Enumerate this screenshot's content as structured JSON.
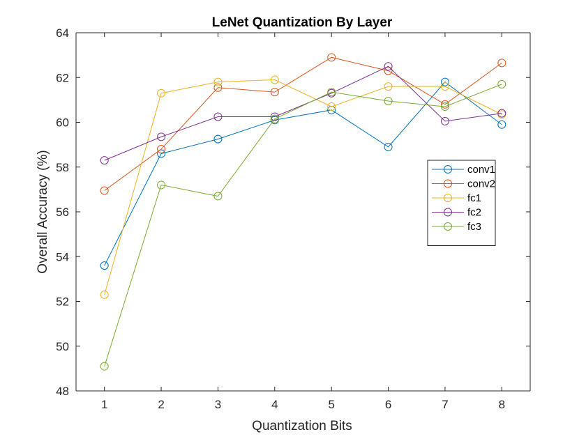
{
  "chart_data": {
    "type": "line",
    "title": "LeNet Quantization By Layer",
    "xlabel": "Quantization Bits",
    "ylabel": "Overall Accuracy (%)",
    "x": [
      1,
      2,
      3,
      4,
      5,
      6,
      7,
      8
    ],
    "xlim": [
      0.5,
      8.5
    ],
    "ylim": [
      48,
      64
    ],
    "xticks": [
      "1",
      "2",
      "3",
      "4",
      "5",
      "6",
      "7",
      "8"
    ],
    "yticks": [
      "48",
      "50",
      "52",
      "54",
      "56",
      "58",
      "60",
      "62",
      "64"
    ],
    "legend_location": "right",
    "marker": "circle",
    "grid": false,
    "series": [
      {
        "name": "conv1",
        "color": "#0072BD",
        "values": [
          53.6,
          58.6,
          59.25,
          60.1,
          60.55,
          58.9,
          61.8,
          59.9
        ]
      },
      {
        "name": "conv2",
        "color": "#D95319",
        "values": [
          56.95,
          58.8,
          61.55,
          61.35,
          62.9,
          62.3,
          60.8,
          62.65
        ]
      },
      {
        "name": "fc1",
        "color": "#EDB120",
        "values": [
          52.3,
          61.3,
          61.8,
          61.9,
          60.7,
          61.6,
          61.6,
          60.35
        ]
      },
      {
        "name": "fc2",
        "color": "#7E2F8E",
        "values": [
          58.3,
          59.35,
          60.25,
          60.25,
          61.3,
          62.5,
          60.05,
          60.4
        ]
      },
      {
        "name": "fc3",
        "color": "#77AC30",
        "values": [
          49.1,
          57.2,
          56.7,
          60.15,
          61.35,
          60.95,
          60.7,
          61.7
        ]
      }
    ]
  }
}
